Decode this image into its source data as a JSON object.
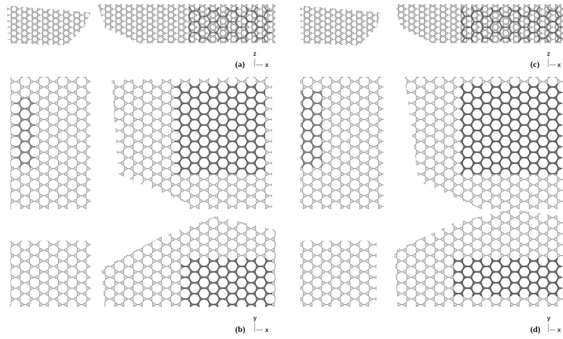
{
  "panels": [
    {
      "label": "(a)",
      "axis_vertical": "z",
      "axis_horizontal": "x"
    },
    {
      "label": "(b)",
      "axis_vertical": "y",
      "axis_horizontal": "x"
    },
    {
      "label": "(c)",
      "axis_vertical": "z",
      "axis_horizontal": "x"
    },
    {
      "label": "(d)",
      "axis_vertical": "y",
      "axis_horizontal": "x"
    }
  ]
}
